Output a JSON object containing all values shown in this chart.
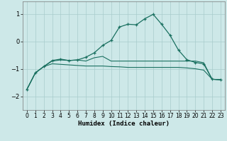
{
  "xlabel": "Humidex (Indice chaleur)",
  "bg_color": "#cde8e8",
  "line_color": "#1a7060",
  "grid_color": "#a8cccc",
  "xlim": [
    -0.5,
    23.5
  ],
  "ylim": [
    -2.5,
    1.45
  ],
  "yticks": [
    -2,
    -1,
    0,
    1
  ],
  "xticks": [
    0,
    1,
    2,
    3,
    4,
    5,
    6,
    7,
    8,
    9,
    10,
    11,
    12,
    13,
    14,
    15,
    16,
    17,
    18,
    19,
    20,
    21,
    22,
    23
  ],
  "line1_y": [
    -1.75,
    -1.15,
    -0.92,
    -0.7,
    -0.65,
    -0.7,
    -0.68,
    -0.58,
    -0.42,
    -0.15,
    0.03,
    0.52,
    0.62,
    0.6,
    0.82,
    0.98,
    0.62,
    0.22,
    -0.32,
    -0.67,
    -0.77,
    -0.82,
    -1.38,
    -1.4
  ],
  "line2_y": [
    -1.75,
    -1.15,
    -0.92,
    -0.72,
    -0.68,
    -0.7,
    -0.68,
    -0.72,
    -0.6,
    -0.55,
    -0.72,
    -0.72,
    -0.72,
    -0.72,
    -0.72,
    -0.72,
    -0.72,
    -0.72,
    -0.72,
    -0.72,
    -0.72,
    -0.78,
    -1.38,
    -1.4
  ],
  "line3_y": [
    -1.75,
    -1.15,
    -0.92,
    -0.82,
    -0.84,
    -0.86,
    -0.88,
    -0.9,
    -0.9,
    -0.9,
    -0.92,
    -0.93,
    -0.95,
    -0.95,
    -0.95,
    -0.95,
    -0.95,
    -0.95,
    -0.95,
    -0.97,
    -1.0,
    -1.05,
    -1.38,
    -1.4
  ],
  "tick_fontsize": 5.5,
  "xlabel_fontsize": 6.5
}
